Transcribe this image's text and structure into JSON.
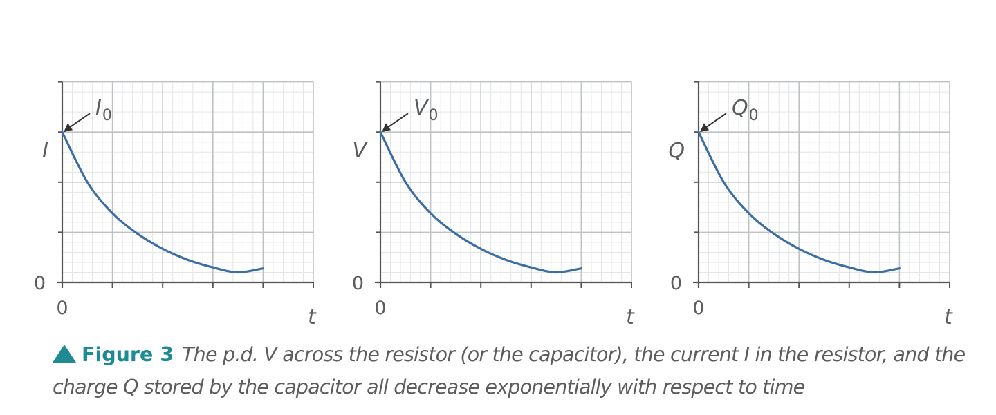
{
  "chart_data": [
    {
      "type": "line",
      "ylabel": "I",
      "xlabel": "t",
      "x_origin_label": "0",
      "y_origin_label": "0",
      "initial_value_label": {
        "symbol": "I",
        "subscript": "0"
      },
      "xlim": [
        0,
        5
      ],
      "ylim": [
        0,
        4
      ],
      "grid": true,
      "series": [
        {
          "x": [
            0,
            0.5,
            1,
            1.5,
            2,
            2.5,
            3,
            3.5,
            4
          ],
          "y": [
            3,
            2.0,
            1.38,
            0.97,
            0.67,
            0.45,
            0.3,
            0.2,
            0.28
          ]
        }
      ]
    },
    {
      "type": "line",
      "ylabel": "V",
      "xlabel": "t",
      "x_origin_label": "0",
      "y_origin_label": "0",
      "initial_value_label": {
        "symbol": "V",
        "subscript": "0"
      },
      "xlim": [
        0,
        5
      ],
      "ylim": [
        0,
        4
      ],
      "grid": true,
      "series": [
        {
          "x": [
            0,
            0.5,
            1,
            1.5,
            2,
            2.5,
            3,
            3.5,
            4
          ],
          "y": [
            3,
            2.0,
            1.38,
            0.97,
            0.67,
            0.45,
            0.3,
            0.2,
            0.28
          ]
        }
      ]
    },
    {
      "type": "line",
      "ylabel": "Q",
      "xlabel": "t",
      "x_origin_label": "0",
      "y_origin_label": "0",
      "initial_value_label": {
        "symbol": "Q",
        "subscript": "0"
      },
      "xlim": [
        0,
        5
      ],
      "ylim": [
        0,
        4
      ],
      "grid": true,
      "series": [
        {
          "x": [
            0,
            0.5,
            1,
            1.5,
            2,
            2.5,
            3,
            3.5,
            4
          ],
          "y": [
            3,
            2.0,
            1.38,
            0.97,
            0.67,
            0.45,
            0.3,
            0.2,
            0.28
          ]
        }
      ]
    }
  ],
  "caption": {
    "label": "Figure 3",
    "text": "The p.d. V across the resistor (or the capacitor), the current I in the resistor, and the charge Q stored by the capacitor all decrease exponentially with respect to time"
  },
  "colors": {
    "curve": "#3a6ea5",
    "major_grid": "#bfc2c4",
    "minor_grid": "#e3e5e6",
    "axis": "#555555",
    "label": "#5a5c5e",
    "accent": "#1f8a94"
  }
}
